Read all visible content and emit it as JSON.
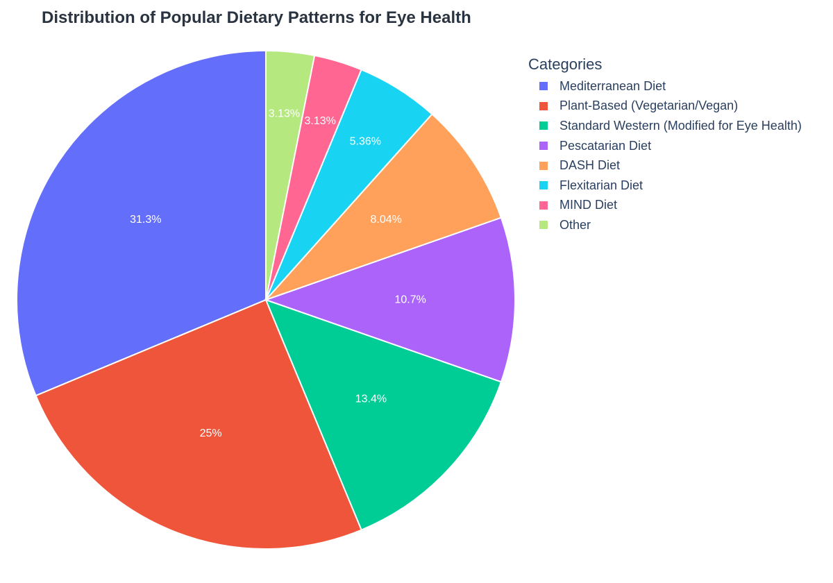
{
  "chart_data": {
    "type": "pie",
    "title": "Distribution of Popular Dietary Patterns for Eye Health",
    "legend_title": "Categories",
    "legend_position": "right",
    "categories": [
      "Mediterranean Diet",
      "Plant-Based (Vegetarian/Vegan)",
      "Standard Western (Modified for Eye Health)",
      "Pescatarian Diet",
      "DASH Diet",
      "Flexitarian Diet",
      "MIND Diet",
      "Other"
    ],
    "values": [
      31.3,
      25,
      13.4,
      10.7,
      8.04,
      5.36,
      3.13,
      3.13
    ],
    "labels": [
      "31.3%",
      "25%",
      "13.4%",
      "10.7%",
      "8.04%",
      "5.36%",
      "3.13%",
      "3.13%"
    ],
    "colors": [
      "#636efa",
      "#ef553b",
      "#00cc96",
      "#ab63fa",
      "#ffa15a",
      "#19d3f3",
      "#ff6692",
      "#b6e880"
    ],
    "direction": "counterclockwise",
    "start": "12 o'clock"
  }
}
